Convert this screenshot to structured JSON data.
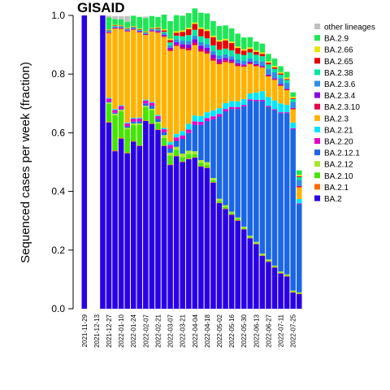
{
  "chart_data": {
    "type": "bar",
    "stacked": true,
    "title": "GISAID",
    "xlabel": "",
    "ylabel": "Sequenced cases per week (fraction)",
    "ylim": [
      0,
      1
    ],
    "yticks": [
      "0.0",
      "0.2",
      "0.4",
      "0.6",
      "0.8",
      "1.0"
    ],
    "grid": false,
    "legend_position": "right",
    "x_tick_labels": [
      "2021-11-29",
      "2021-12-13",
      "2021-12-27",
      "2022-01-10",
      "2022-01-24",
      "2022-02-07",
      "2022-02-21",
      "2022-03-07",
      "2022-03-21",
      "2022-04-04",
      "2022-04-18",
      "2022-05-02",
      "2022-05-16",
      "2022-05-30",
      "2022-06-13",
      "2022-06-27",
      "2022-07-11",
      "2022-07-25"
    ],
    "categories": [
      "2021-11-29",
      "2021-12-06",
      "2021-12-13",
      "2021-12-20",
      "2021-12-27",
      "2022-01-03",
      "2022-01-10",
      "2022-01-17",
      "2022-01-24",
      "2022-01-31",
      "2022-02-07",
      "2022-02-14",
      "2022-02-21",
      "2022-02-28",
      "2022-03-07",
      "2022-03-14",
      "2022-03-21",
      "2022-03-28",
      "2022-04-04",
      "2022-04-11",
      "2022-04-18",
      "2022-04-25",
      "2022-05-02",
      "2022-05-09",
      "2022-05-16",
      "2022-05-23",
      "2022-05-30",
      "2022-06-06",
      "2022-06-13",
      "2022-06-20",
      "2022-06-27",
      "2022-07-04",
      "2022-07-11",
      "2022-07-18",
      "2022-07-25",
      "2022-08-01"
    ],
    "bar_present": [
      1,
      0,
      0,
      1,
      1,
      1,
      1,
      1,
      1,
      1,
      1,
      1,
      1,
      1,
      1,
      1,
      1,
      1,
      1,
      1,
      1,
      1,
      1,
      1,
      1,
      1,
      1,
      1,
      1,
      1,
      1,
      1,
      1,
      1,
      1,
      1
    ],
    "series": [
      {
        "name": "BA.2",
        "color": "#2a00e6",
        "values": [
          1.0,
          0,
          0,
          1.0,
          0.635,
          0.537,
          0.58,
          0.53,
          0.57,
          0.555,
          0.64,
          0.63,
          0.61,
          0.555,
          0.49,
          0.52,
          0.5,
          0.51,
          0.515,
          0.485,
          0.48,
          0.43,
          0.36,
          0.34,
          0.32,
          0.3,
          0.27,
          0.24,
          0.22,
          0.18,
          0.16,
          0.14,
          0.12,
          0.11,
          0.055,
          0.05
        ]
      },
      {
        "name": "BA.2.1",
        "color": "#ff6a00",
        "values": [
          0,
          0,
          0,
          0,
          0.003,
          0.003,
          0.003,
          0.002,
          0.002,
          0.002,
          0.002,
          0.002,
          0.002,
          0.002,
          0.002,
          0.002,
          0.002,
          0.002,
          0.002,
          0.002,
          0.002,
          0.002,
          0.002,
          0.002,
          0.002,
          0.002,
          0.002,
          0.002,
          0.002,
          0.002,
          0.002,
          0.002,
          0.002,
          0.002,
          0.002,
          0.002
        ]
      },
      {
        "name": "BA.2.10",
        "color": "#45e600",
        "values": [
          0,
          0,
          0,
          0,
          0.06,
          0.12,
          0.09,
          0.08,
          0.055,
          0.07,
          0.045,
          0.045,
          0.02,
          0.025,
          0.03,
          0.02,
          0.015,
          0.015,
          0.01,
          0.01,
          0.008,
          0.006,
          0.006,
          0.005,
          0.004,
          0.004,
          0.003,
          0.003,
          0.002,
          0.002,
          0.002,
          0.002,
          0.002,
          0.002,
          0.002,
          0.002
        ]
      },
      {
        "name": "BA.2.12",
        "color": "#a6e62a",
        "values": [
          0,
          0,
          0,
          0,
          0.005,
          0.005,
          0.005,
          0.005,
          0.005,
          0.005,
          0.005,
          0.005,
          0.005,
          0.01,
          0.01,
          0.01,
          0.012,
          0.012,
          0.01,
          0.01,
          0.01,
          0.008,
          0.007,
          0.006,
          0.005,
          0.005,
          0.005,
          0.004,
          0.004,
          0.004,
          0.004,
          0.003,
          0.003,
          0.003,
          0.003,
          0.002
        ]
      },
      {
        "name": "BA.2.12.1",
        "color": "#1a66e6",
        "values": [
          0,
          0,
          0,
          0,
          0.003,
          0.003,
          0.003,
          0.005,
          0.006,
          0.007,
          0.008,
          0.01,
          0.01,
          0.01,
          0.015,
          0.02,
          0.05,
          0.06,
          0.09,
          0.12,
          0.14,
          0.2,
          0.28,
          0.32,
          0.35,
          0.37,
          0.41,
          0.46,
          0.48,
          0.52,
          0.52,
          0.53,
          0.54,
          0.55,
          0.55,
          0.3
        ]
      },
      {
        "name": "BA.2.20",
        "color": "#e600c8",
        "values": [
          0,
          0,
          0,
          0,
          0.01,
          0.01,
          0.01,
          0.01,
          0.01,
          0.01,
          0.01,
          0.01,
          0.01,
          0.01,
          0.012,
          0.012,
          0.012,
          0.012,
          0.012,
          0.01,
          0.01,
          0.01,
          0.009,
          0.008,
          0.007,
          0.006,
          0.005,
          0.005,
          0.004,
          0.004,
          0.004,
          0.003,
          0.003,
          0.003,
          0.003,
          0.003
        ]
      },
      {
        "name": "BA.2.21",
        "color": "#00e6ff",
        "values": [
          0,
          0,
          0,
          0,
          0.003,
          0.003,
          0.003,
          0.003,
          0.003,
          0.003,
          0.003,
          0.003,
          0.004,
          0.005,
          0.01,
          0.012,
          0.015,
          0.02,
          0.02,
          0.02,
          0.02,
          0.02,
          0.02,
          0.02,
          0.02,
          0.02,
          0.02,
          0.02,
          0.025,
          0.03,
          0.03,
          0.03,
          0.03,
          0.025,
          0.02,
          0.015
        ]
      },
      {
        "name": "BA.2.3",
        "color": "#ffb300",
        "values": [
          0,
          0,
          0,
          0,
          0.221,
          0.274,
          0.26,
          0.31,
          0.3,
          0.29,
          0.22,
          0.24,
          0.28,
          0.31,
          0.31,
          0.3,
          0.28,
          0.25,
          0.24,
          0.22,
          0.2,
          0.17,
          0.15,
          0.14,
          0.13,
          0.12,
          0.11,
          0.1,
          0.09,
          0.08,
          0.07,
          0.07,
          0.06,
          0.05,
          0.045,
          0.04
        ]
      },
      {
        "name": "BA.2.3.10",
        "color": "#e6004a",
        "values": [
          0,
          0,
          0,
          0,
          0.002,
          0.002,
          0.002,
          0.002,
          0.002,
          0.002,
          0.002,
          0.002,
          0.003,
          0.003,
          0.005,
          0.005,
          0.006,
          0.008,
          0.008,
          0.008,
          0.008,
          0.008,
          0.007,
          0.006,
          0.005,
          0.005,
          0.004,
          0.004,
          0.004,
          0.003,
          0.003,
          0.003,
          0.003,
          0.003,
          0.003,
          0.003
        ]
      },
      {
        "name": "BA.2.3.4",
        "color": "#8c00e6",
        "values": [
          0,
          0,
          0,
          0,
          0.002,
          0.002,
          0.002,
          0.002,
          0.002,
          0.002,
          0.002,
          0.002,
          0.003,
          0.004,
          0.006,
          0.008,
          0.01,
          0.012,
          0.012,
          0.012,
          0.012,
          0.012,
          0.01,
          0.008,
          0.006,
          0.005,
          0.004,
          0.004,
          0.003,
          0.003,
          0.003,
          0.003,
          0.003,
          0.002,
          0.002,
          0.002
        ]
      },
      {
        "name": "BA.2.3.6",
        "color": "#2b8fe6",
        "values": [
          0,
          0,
          0,
          0,
          0.003,
          0.003,
          0.003,
          0.003,
          0.003,
          0.003,
          0.003,
          0.003,
          0.004,
          0.005,
          0.008,
          0.01,
          0.012,
          0.012,
          0.012,
          0.012,
          0.012,
          0.012,
          0.012,
          0.012,
          0.012,
          0.012,
          0.012,
          0.012,
          0.012,
          0.015,
          0.02,
          0.02,
          0.02,
          0.02,
          0.02,
          0.02
        ]
      },
      {
        "name": "BA.2.38",
        "color": "#00e6a0",
        "values": [
          0,
          0,
          0,
          0,
          0.002,
          0.002,
          0.002,
          0.002,
          0.002,
          0.002,
          0.002,
          0.002,
          0.003,
          0.005,
          0.01,
          0.012,
          0.015,
          0.02,
          0.02,
          0.02,
          0.02,
          0.02,
          0.02,
          0.02,
          0.02,
          0.02,
          0.02,
          0.02,
          0.02,
          0.018,
          0.015,
          0.012,
          0.012,
          0.01,
          0.01,
          0.01
        ]
      },
      {
        "name": "BA.2.65",
        "color": "#e60000",
        "values": [
          0,
          0,
          0,
          0,
          0.002,
          0.002,
          0.002,
          0.002,
          0.002,
          0.002,
          0.002,
          0.002,
          0.003,
          0.005,
          0.008,
          0.01,
          0.015,
          0.02,
          0.02,
          0.025,
          0.025,
          0.028,
          0.028,
          0.028,
          0.025,
          0.02,
          0.015,
          0.012,
          0.01,
          0.008,
          0.006,
          0.005,
          0.004,
          0.003,
          0.003,
          0.003
        ]
      },
      {
        "name": "BA.2.66",
        "color": "#e6e600",
        "values": [
          0,
          0,
          0,
          0,
          0.002,
          0.002,
          0.002,
          0.002,
          0.002,
          0.002,
          0.002,
          0.002,
          0.003,
          0.004,
          0.005,
          0.005,
          0.005,
          0.005,
          0.005,
          0.005,
          0.005,
          0.005,
          0.005,
          0.005,
          0.005,
          0.005,
          0.005,
          0.005,
          0.005,
          0.005,
          0.005,
          0.005,
          0.005,
          0.005,
          0.005,
          0.005
        ]
      },
      {
        "name": "BA.2.9",
        "color": "#1ee655",
        "values": [
          0,
          0,
          0,
          0,
          0.04,
          0.02,
          0.02,
          0.02,
          0.035,
          0.04,
          0.045,
          0.04,
          0.035,
          0.05,
          0.06,
          0.055,
          0.05,
          0.05,
          0.048,
          0.05,
          0.055,
          0.05,
          0.048,
          0.046,
          0.045,
          0.044,
          0.04,
          0.035,
          0.03,
          0.03,
          0.025,
          0.025,
          0.02,
          0.02,
          0.015,
          0.015
        ]
      },
      {
        "name": "other lineages",
        "color": "#c0c0c0",
        "values": [
          0,
          0,
          0,
          0,
          0.006,
          0.01,
          0.01,
          0.02,
          0.0,
          0.0,
          0.005,
          0.0,
          0.0,
          0.0,
          0.0,
          0.0,
          0.0,
          0.0,
          0.0,
          0.0,
          0.0,
          0.0,
          0.0,
          0.0,
          0.0,
          0.0,
          0.0,
          0.0,
          0.0,
          0.0,
          0.0,
          0.0,
          0.0,
          0.0,
          0.0,
          0.0
        ]
      }
    ]
  }
}
